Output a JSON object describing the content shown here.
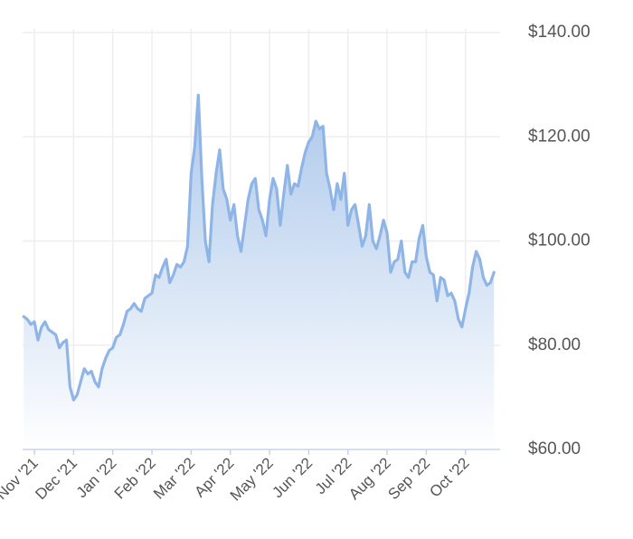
{
  "chart_data": {
    "type": "area",
    "categories": [
      null,
      null,
      null,
      "Nov '21",
      null,
      null,
      null,
      null,
      null,
      null,
      null,
      null,
      null,
      null,
      "Dec '21",
      null,
      null,
      null,
      null,
      null,
      null,
      null,
      null,
      null,
      null,
      "Jan '22",
      null,
      null,
      null,
      null,
      null,
      null,
      null,
      null,
      null,
      null,
      "Feb '22",
      null,
      null,
      null,
      null,
      null,
      null,
      null,
      null,
      null,
      null,
      "Mar '22",
      null,
      null,
      null,
      null,
      null,
      null,
      null,
      null,
      null,
      null,
      "Apr '22",
      null,
      null,
      null,
      null,
      null,
      null,
      null,
      null,
      null,
      null,
      "May '22",
      null,
      null,
      null,
      null,
      null,
      null,
      null,
      null,
      null,
      null,
      "Jun '22",
      null,
      null,
      null,
      null,
      null,
      null,
      null,
      null,
      null,
      null,
      "Jul '22",
      null,
      null,
      null,
      null,
      null,
      null,
      null,
      null,
      null,
      null,
      "Aug '22",
      null,
      null,
      null,
      null,
      null,
      null,
      null,
      null,
      null,
      null,
      "Sep '22",
      null,
      null,
      null,
      null,
      null,
      null,
      null,
      null,
      null,
      null,
      "Oct '22",
      null,
      null,
      null,
      null,
      null,
      null,
      null,
      null
    ],
    "values": [
      85.5,
      85,
      84,
      84.5,
      81,
      83.5,
      84.5,
      83,
      82.5,
      82,
      79.5,
      80.5,
      81,
      72,
      69.5,
      70.5,
      73,
      75.5,
      74.5,
      75,
      73,
      72,
      75.5,
      77.5,
      79,
      79.5,
      81.5,
      82,
      84,
      86.5,
      87,
      88,
      87,
      86.5,
      89,
      89.5,
      90,
      93.5,
      93,
      95,
      96.5,
      92,
      93.5,
      95.5,
      95,
      96,
      99,
      113,
      118,
      128,
      112,
      100,
      96,
      107,
      113,
      117.5,
      110,
      108,
      104,
      107,
      101,
      98,
      103,
      108,
      111,
      112,
      106,
      104,
      101,
      108,
      112,
      110,
      103,
      109,
      114.5,
      109,
      111,
      110.5,
      114,
      117,
      119,
      120,
      123,
      121.5,
      122,
      113,
      110,
      106,
      111,
      108,
      113,
      103,
      106,
      107,
      103,
      99,
      101,
      107,
      100,
      98.5,
      101,
      104,
      101.5,
      94,
      96,
      96.5,
      100,
      94,
      93,
      96,
      96,
      100.5,
      103,
      97,
      94,
      93.5,
      88.5,
      93,
      92.5,
      89.5,
      90,
      88.5,
      85,
      83.5,
      87,
      90,
      95,
      98,
      96.5,
      93,
      91.5,
      92,
      94
    ],
    "color": "#8fb5e6",
    "ylim": [
      60,
      140
    ],
    "yticks": [
      {
        "value": 60,
        "label": "$60.00"
      },
      {
        "value": 80,
        "label": "$80.00"
      },
      {
        "value": 100,
        "label": "$100.00"
      },
      {
        "value": 120,
        "label": "$120.00"
      },
      {
        "value": 140,
        "label": "$140.00"
      }
    ],
    "grid": true
  }
}
